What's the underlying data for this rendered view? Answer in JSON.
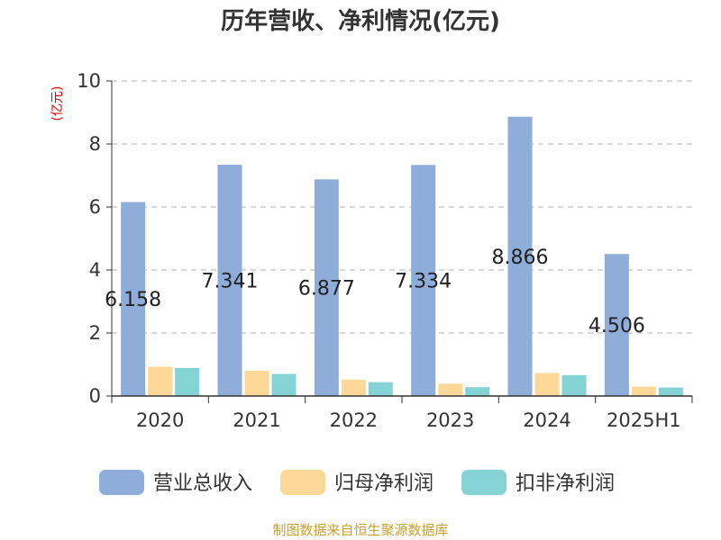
{
  "chart_data": {
    "type": "bar",
    "title": "历年营收、净利情况(亿元)",
    "ylabel": "(亿元)",
    "xlabel": "",
    "ylim": [
      0,
      10
    ],
    "yticks": [
      0,
      2,
      4,
      6,
      8,
      10
    ],
    "grid": true,
    "legend_position": "bottom",
    "categories": [
      "2020",
      "2021",
      "2022",
      "2023",
      "2024",
      "2025H1"
    ],
    "series": [
      {
        "name": "营业总收入",
        "color": "#8eadd9",
        "values": [
          6.158,
          7.341,
          6.877,
          7.334,
          8.866,
          4.506
        ],
        "show_labels": true
      },
      {
        "name": "归母净利润",
        "color": "#fdd898",
        "values": [
          0.93,
          0.8,
          0.52,
          0.39,
          0.73,
          0.3
        ],
        "show_labels": false
      },
      {
        "name": "扣非净利润",
        "color": "#86d3d6",
        "values": [
          0.89,
          0.7,
          0.44,
          0.28,
          0.66,
          0.27
        ],
        "show_labels": false
      }
    ],
    "value_labels": [
      "6.158",
      "7.341",
      "6.877",
      "7.334",
      "8.866",
      "4.506"
    ]
  },
  "source": "制图数据来自恒生聚源数据库"
}
